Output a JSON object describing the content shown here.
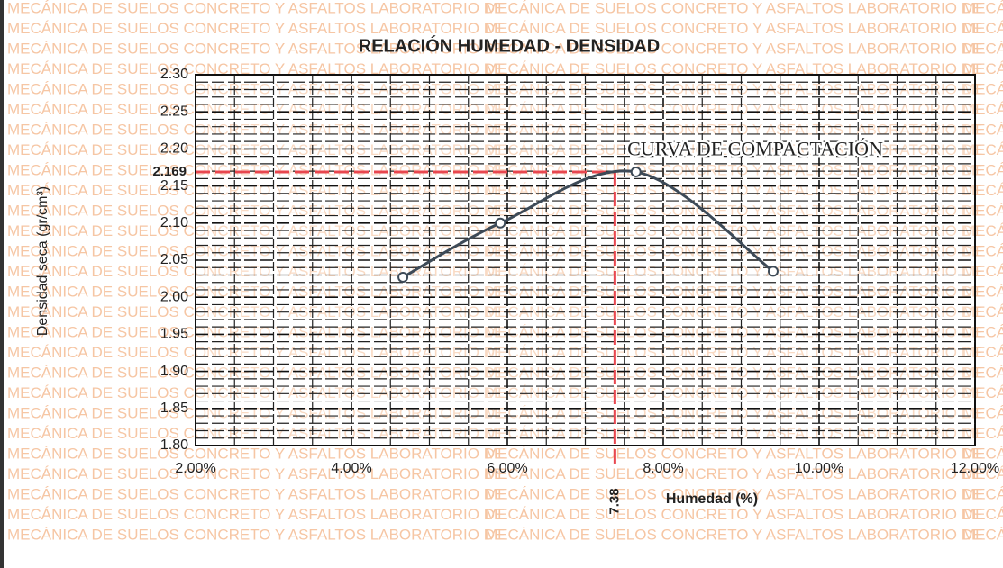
{
  "chart_data": {
    "type": "line",
    "title": "RELACIÓN HUMEDAD - DENSIDAD",
    "xlabel": "Humedad (%)",
    "ylabel": "Densidad seca (gr/cm³)",
    "watermark": "MECÁNICA DE SUELOS CONCRETO Y ASFALTOS LABORATORIO DE",
    "annotation": "CURVA DE COMPACTACIÓN",
    "x": [
      4.66,
      5.91,
      7.65,
      9.41
    ],
    "series": [
      {
        "color": "#3d4a57",
        "values": [
          2.027,
          2.1,
          2.169,
          2.035
        ]
      }
    ],
    "optimum": {
      "x": 7.38,
      "x_label": "7.38",
      "y": 2.169,
      "y_label": "2.169",
      "color": "#e8474f"
    },
    "xlim": [
      2,
      12
    ],
    "xticks": [
      {
        "value": 2,
        "label": "2.00%"
      },
      {
        "value": 4,
        "label": "4.00%"
      },
      {
        "value": 6,
        "label": "6.00%"
      },
      {
        "value": 8,
        "label": "8.00%"
      },
      {
        "value": 10,
        "label": "10.00%"
      },
      {
        "value": 12,
        "label": "12.00%"
      }
    ],
    "ylim": [
      1.8,
      2.3
    ],
    "yticks": [
      {
        "value": 1.8,
        "label": "1.80"
      },
      {
        "value": 1.85,
        "label": "1.85"
      },
      {
        "value": 1.9,
        "label": "1.90"
      },
      {
        "value": 1.95,
        "label": "1.95"
      },
      {
        "value": 2.0,
        "label": "2.00"
      },
      {
        "value": 2.05,
        "label": "2.05"
      },
      {
        "value": 2.1,
        "label": "2.10"
      },
      {
        "value": 2.15,
        "label": "2.15"
      },
      {
        "value": 2.2,
        "label": "2.20"
      },
      {
        "value": 2.25,
        "label": "2.25"
      },
      {
        "value": 2.3,
        "label": "2.30"
      }
    ],
    "grid": true
  }
}
